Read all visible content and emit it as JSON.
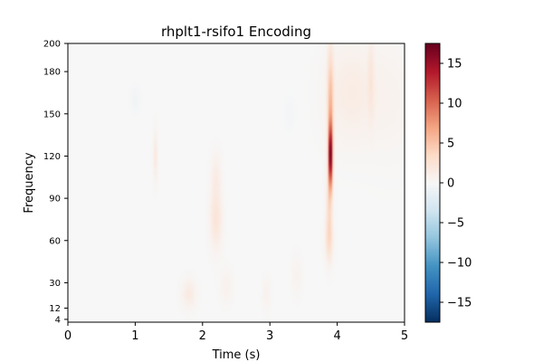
{
  "chart_data": {
    "type": "heatmap",
    "title": "rhplt1-rsifo1 Encoding",
    "xlabel": "Time (s)",
    "ylabel": "Frequency",
    "xlim": [
      0,
      5
    ],
    "ylim": [
      2,
      200
    ],
    "x_ticks": [
      0,
      1,
      2,
      3,
      4,
      5
    ],
    "y_ticks": [
      4,
      12,
      30,
      60,
      90,
      120,
      150,
      180,
      200
    ],
    "colorbar": {
      "vmin": -17.5,
      "vmax": 17.5,
      "ticks": [
        15,
        10,
        5,
        0,
        -5,
        -10,
        -15
      ],
      "colormap": "RdBu_r"
    },
    "features": [
      {
        "t": 3.9,
        "f": 120,
        "value": 17,
        "sd_t": 0.022,
        "sd_f": 16
      },
      {
        "t": 3.9,
        "f": 160,
        "value": 5,
        "sd_t": 0.03,
        "sd_f": 25
      },
      {
        "t": 3.88,
        "f": 80,
        "value": 3,
        "sd_t": 0.03,
        "sd_f": 18
      },
      {
        "t": 3.88,
        "f": 60,
        "value": 2.2,
        "sd_t": 0.04,
        "sd_f": 10
      },
      {
        "t": 4.2,
        "f": 165,
        "value": 1.3,
        "sd_t": 0.25,
        "sd_f": 25
      },
      {
        "t": 4.5,
        "f": 175,
        "value": 1.5,
        "sd_t": 0.03,
        "sd_f": 20
      },
      {
        "t": 4.8,
        "f": 160,
        "value": 0.6,
        "sd_t": 0.25,
        "sd_f": 30
      },
      {
        "t": 2.2,
        "f": 75,
        "value": 2.2,
        "sd_t": 0.06,
        "sd_f": 14
      },
      {
        "t": 2.2,
        "f": 105,
        "value": 1.2,
        "sd_t": 0.05,
        "sd_f": 12
      },
      {
        "t": 1.3,
        "f": 120,
        "value": 1.8,
        "sd_t": 0.02,
        "sd_f": 12
      },
      {
        "t": 1.8,
        "f": 22,
        "value": 1.5,
        "sd_t": 0.07,
        "sd_f": 7
      },
      {
        "t": 2.35,
        "f": 28,
        "value": 0.8,
        "sd_t": 0.06,
        "sd_f": 8
      },
      {
        "t": 2.95,
        "f": 22,
        "value": 0.7,
        "sd_t": 0.04,
        "sd_f": 8
      },
      {
        "t": 3.4,
        "f": 35,
        "value": 0.6,
        "sd_t": 0.05,
        "sd_f": 10
      },
      {
        "t": 1.0,
        "f": 160,
        "value": -0.6,
        "sd_t": 0.05,
        "sd_f": 6
      },
      {
        "t": 3.3,
        "f": 150,
        "value": -0.4,
        "sd_t": 0.05,
        "sd_f": 8
      }
    ]
  }
}
